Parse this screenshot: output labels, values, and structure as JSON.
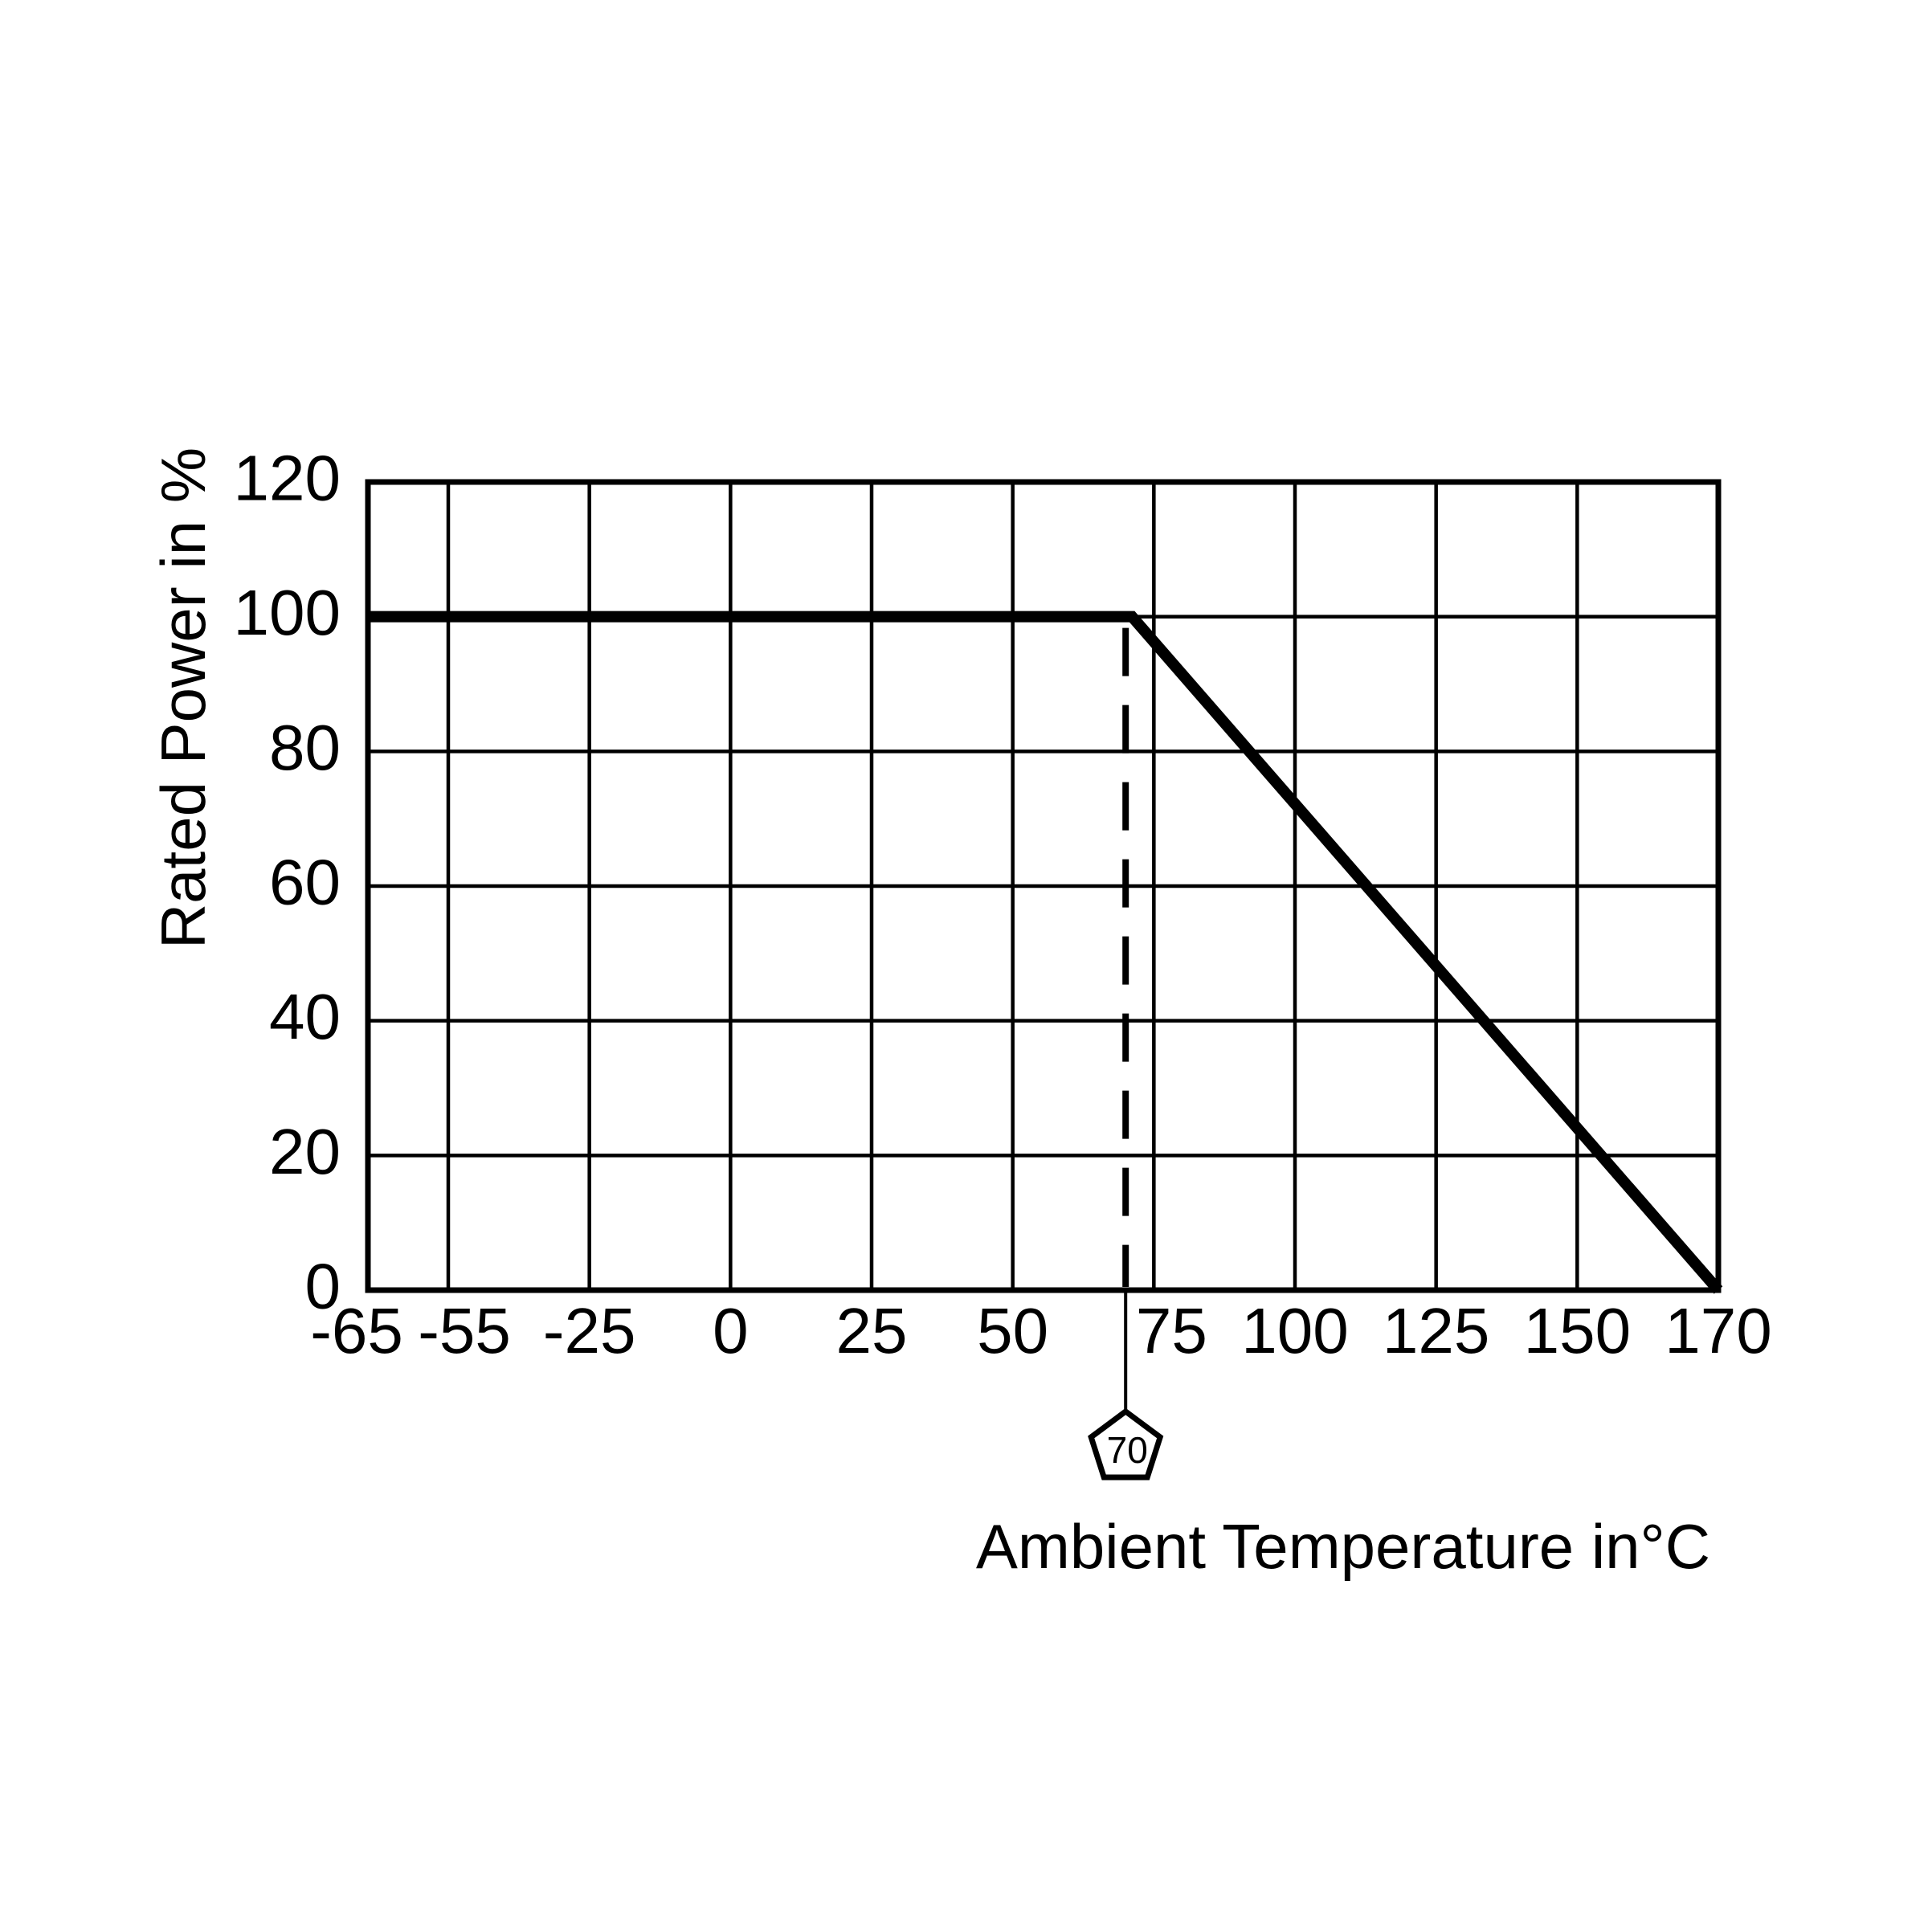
{
  "figure": {
    "background": "#ffffff",
    "foreground": "#000000"
  },
  "chart_data": {
    "type": "line",
    "title": "",
    "xlabel": "Ambient Temperature in°C",
    "ylabel": "Rated Power in %",
    "xlim": [
      -65,
      170
    ],
    "ylim": [
      0,
      120
    ],
    "grid": true,
    "legend": false,
    "x_ticks": [
      {
        "value": -65,
        "label": "-65"
      },
      {
        "value": -55,
        "label": "-55"
      },
      {
        "value": -25,
        "label": "-25"
      },
      {
        "value": 0,
        "label": "0"
      },
      {
        "value": 25,
        "label": "25"
      },
      {
        "value": 50,
        "label": "50"
      },
      {
        "value": 75,
        "label": "75"
      },
      {
        "value": 100,
        "label": "100"
      },
      {
        "value": 125,
        "label": "125"
      },
      {
        "value": 150,
        "label": "150"
      },
      {
        "value": 170,
        "label": "170"
      }
    ],
    "y_ticks": [
      {
        "value": 0,
        "label": "0"
      },
      {
        "value": 20,
        "label": "20"
      },
      {
        "value": 40,
        "label": "40"
      },
      {
        "value": 60,
        "label": "60"
      },
      {
        "value": 80,
        "label": "80"
      },
      {
        "value": 100,
        "label": "100"
      },
      {
        "value": 120,
        "label": "120"
      }
    ],
    "series": [
      {
        "name": "rated-power-derating-curve",
        "color": "#000000",
        "points": [
          {
            "x": -65,
            "y": 100
          },
          {
            "x": 70,
            "y": 100
          },
          {
            "x": 170,
            "y": 0
          }
        ]
      }
    ],
    "annotations": [
      {
        "type": "dashed-vline",
        "x": 70,
        "from_y": 0,
        "to_y": 100
      },
      {
        "type": "pentagon-callout",
        "x": 70,
        "label": "70"
      }
    ]
  }
}
